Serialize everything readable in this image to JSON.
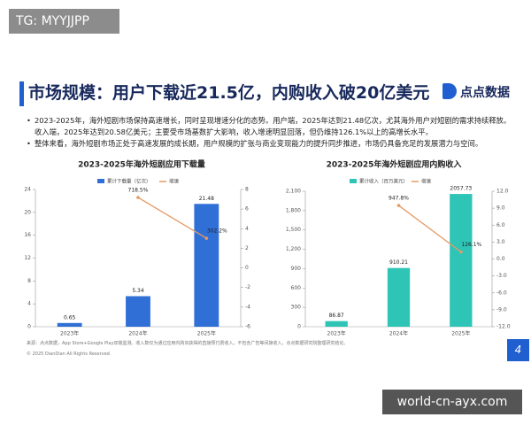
{
  "watermark": "TG: MYYJJPP",
  "title": "市场规模：用户下载近21.5亿，内购收入破20亿美元",
  "brand": "点点数据",
  "bullets": [
    "2023-2025年，海外短剧市场保持高速增长，同时呈现增速分化的态势。用户端，2025年达到21.48亿次，尤其海外用户对短剧的需求持续释放。收入端，2025年达到20.58亿美元；主要受市场基数扩大影响，收入增速明显回落，但仍维持126.1%以上的高增长水平。",
    "整体来看，海外短剧市场正处于高速发展的成长期，用户规模的扩张与商业变现能力的提升同步推进，市场仍具备充足的发展潜力与空间。"
  ],
  "chart_data": [
    {
      "type": "bar",
      "title": "2023-2025年海外短剧应用下载量",
      "categories": [
        "2023年",
        "2024年",
        "2025年"
      ],
      "series": [
        {
          "name": "累计下载量（亿次）",
          "type": "bar",
          "color": "#2f6fd6",
          "values": [
            0.65,
            5.34,
            21.48
          ]
        },
        {
          "name": "增速",
          "type": "line",
          "axis": "y2",
          "color": "#e59a63",
          "values": [
            null,
            7.185,
            3.022
          ],
          "value_labels": [
            null,
            "718.5%",
            "302.2%"
          ]
        }
      ],
      "ylim": [
        0,
        24
      ],
      "yticks": [
        0,
        4,
        8,
        12,
        16,
        20,
        24
      ],
      "y2lim": [
        -6,
        8
      ],
      "y2ticks": [
        -6,
        -4,
        -2,
        0,
        2,
        4,
        6,
        8
      ],
      "grid": false,
      "legend": "top"
    },
    {
      "type": "bar",
      "title": "2023-2025年海外短剧应用内购收入",
      "categories": [
        "2023年",
        "2024年",
        "2025年"
      ],
      "series": [
        {
          "name": "累计收入（百万美元）",
          "type": "bar",
          "color": "#2ec4b6",
          "values": [
            86.87,
            910.21,
            2057.73
          ]
        },
        {
          "name": "增速",
          "type": "line",
          "axis": "y2",
          "color": "#e59a63",
          "values": [
            null,
            9.478,
            1.261
          ],
          "value_labels": [
            null,
            "947.8%",
            "126.1%"
          ]
        }
      ],
      "ylim": [
        0,
        2100
      ],
      "yticks": [
        0,
        300,
        600,
        900,
        {
          "value": 1200,
          "label": "1,200"
        },
        {
          "value": 1500,
          "label": "1,500"
        },
        {
          "value": 1800,
          "label": "1,800"
        },
        {
          "value": 2100,
          "label": "2,100"
        }
      ],
      "y2lim": [
        -12,
        12
      ],
      "y2ticks": [
        {
          "value": -12,
          "label": "-12.0"
        },
        {
          "value": -9,
          "label": "-9.0"
        },
        {
          "value": -6,
          "label": "-6.0"
        },
        {
          "value": -3,
          "label": "-3.0"
        },
        {
          "value": 0,
          "label": "0.0"
        },
        {
          "value": 3,
          "label": "3.0"
        },
        {
          "value": 6,
          "label": "6.0"
        },
        {
          "value": 9,
          "label": "9.0"
        },
        {
          "value": 12,
          "label": "12.0"
        }
      ],
      "grid": false,
      "legend": "top"
    }
  ],
  "source": "来源：点点数据，App Store+Google Play双端监测。收入数仅为通过应用内购买获得的直接预付费收入，不包含广告等间接收入，点点数据研究院整理研究结论。",
  "copyright": "© 2025 DianDian All Rights Reserved.",
  "page": "4",
  "footer_watermark": "world-cn-ayx.com"
}
